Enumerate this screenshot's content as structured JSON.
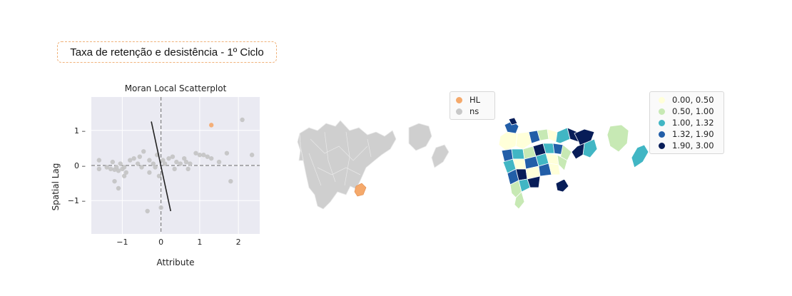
{
  "title_box": {
    "text": "Taxa de retenção e desistência - 1º Ciclo"
  },
  "chart_data": {
    "type": "scatter",
    "title": "Moran Local Scatterplot",
    "xlabel": "Attribute",
    "ylabel": "Spatial Lag",
    "xlim": [
      -1.8,
      2.55
    ],
    "ylim": [
      -1.95,
      1.95
    ],
    "xticks": [
      -1,
      0,
      1,
      2
    ],
    "yticks": [
      -1,
      0,
      1
    ],
    "grid": true,
    "background": "#eaeaf2",
    "reference_lines": {
      "x": 0,
      "y": 0
    },
    "regression_line": {
      "x": [
        -0.25,
        0.25
      ],
      "y": [
        1.25,
        -1.3
      ]
    },
    "series": [
      {
        "name": "ns",
        "color": "#c3c3c3",
        "points": [
          [
            -1.6,
            0.15
          ],
          [
            -1.6,
            -0.1
          ],
          [
            -1.4,
            -0.05
          ],
          [
            -1.3,
            -0.1
          ],
          [
            -1.25,
            0.1
          ],
          [
            -1.2,
            -0.12
          ],
          [
            -1.15,
            -0.05
          ],
          [
            -1.1,
            -0.15
          ],
          [
            -1.05,
            0.05
          ],
          [
            -1.0,
            -0.1
          ],
          [
            -0.95,
            -0.05
          ],
          [
            -0.9,
            -0.2
          ],
          [
            -1.2,
            -0.45
          ],
          [
            -1.1,
            -0.65
          ],
          [
            -0.95,
            -0.3
          ],
          [
            -0.8,
            0.15
          ],
          [
            -0.7,
            0.2
          ],
          [
            -0.6,
            0.05
          ],
          [
            -0.55,
            0.25
          ],
          [
            -0.5,
            -0.05
          ],
          [
            -0.45,
            0.4
          ],
          [
            -0.3,
            0.15
          ],
          [
            -0.3,
            -0.2
          ],
          [
            -0.2,
            0.05
          ],
          [
            -0.15,
            -0.05
          ],
          [
            -0.1,
            0.3
          ],
          [
            -0.05,
            -0.3
          ],
          [
            0.05,
            0.15
          ],
          [
            0.1,
            0.05
          ],
          [
            0.2,
            0.2
          ],
          [
            0.3,
            0.25
          ],
          [
            0.35,
            -0.1
          ],
          [
            0.4,
            0.1
          ],
          [
            0.5,
            0.05
          ],
          [
            0.6,
            0.2
          ],
          [
            0.65,
            0.1
          ],
          [
            0.7,
            -0.1
          ],
          [
            0.75,
            0.05
          ],
          [
            0.9,
            0.35
          ],
          [
            1.0,
            0.3
          ],
          [
            1.1,
            0.3
          ],
          [
            1.2,
            0.25
          ],
          [
            1.3,
            0.2
          ],
          [
            1.5,
            0.1
          ],
          [
            1.7,
            0.35
          ],
          [
            1.8,
            -0.45
          ],
          [
            2.1,
            1.3
          ],
          [
            2.35,
            0.3
          ],
          [
            -0.35,
            -1.3
          ],
          [
            0.0,
            -1.2
          ]
        ]
      },
      {
        "name": "HL",
        "color": "#f5a96b",
        "points": [
          [
            1.3,
            1.15
          ]
        ]
      }
    ]
  },
  "legend_lisa": {
    "items": [
      {
        "label": "HL",
        "color": "#f5a96b"
      },
      {
        "label": "ns",
        "color": "#c8c8c8"
      }
    ]
  },
  "legend_choropleth": {
    "items": [
      {
        "label": "0.00, 0.50",
        "color": "#ffffd9"
      },
      {
        "label": "0.50, 1.00",
        "color": "#c7e9b4"
      },
      {
        "label": "1.00, 1.32",
        "color": "#41b6c4"
      },
      {
        "label": "1.32, 1.90",
        "color": "#225ea8"
      },
      {
        "label": "1.90, 3.00",
        "color": "#081d58"
      }
    ]
  }
}
